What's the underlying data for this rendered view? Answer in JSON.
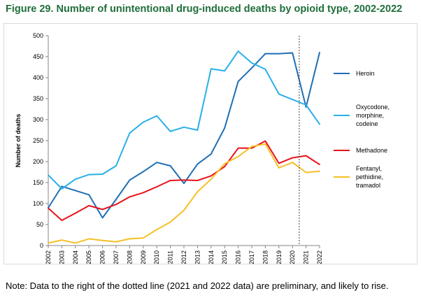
{
  "figure": {
    "title": "Figure 29. Number of unintentional drug-induced deaths by opioid type, 2002-2022",
    "note": "Note: Data to the right of the dotted line (2021 and 2022 data) are preliminary, and likely to rise."
  },
  "chart_data": {
    "type": "line",
    "title": "Figure 29. Number of unintentional drug-induced deaths by opioid type, 2002-2022",
    "xlabel": "",
    "ylabel": "Number of deaths",
    "x": [
      "2002",
      "2003",
      "2004",
      "2005",
      "2006",
      "2007",
      "2008",
      "2009",
      "2010",
      "2011",
      "2012",
      "2013",
      "2014",
      "2015",
      "2016",
      "2017",
      "2018",
      "2019",
      "2020",
      "2021",
      "2022"
    ],
    "ylim": [
      0,
      500
    ],
    "yticks": [
      0,
      50,
      100,
      150,
      200,
      250,
      300,
      350,
      400,
      450,
      500
    ],
    "grid": false,
    "legend_position": "right",
    "preliminary_marker_after": "2020",
    "series": [
      {
        "name": "Heroin",
        "legend_lines": [
          "Heroin"
        ],
        "color": "#1f6fb4",
        "values": [
          90,
          141,
          131,
          121,
          66,
          110,
          156,
          176,
          198,
          190,
          148,
          194,
          218,
          280,
          391,
          423,
          457,
          457,
          459,
          330,
          460
        ]
      },
      {
        "name": "Oxycodone, morphine, codeine",
        "legend_lines": [
          "Oxycodone,",
          "morphine,",
          "codeine"
        ],
        "color": "#29b0e8",
        "values": [
          168,
          135,
          158,
          169,
          170,
          190,
          268,
          294,
          309,
          272,
          282,
          275,
          421,
          416,
          463,
          435,
          420,
          361,
          348,
          335,
          289
        ]
      },
      {
        "name": "Methadone",
        "legend_lines": [
          "Methadone"
        ],
        "color": "#e8121b",
        "values": [
          89,
          60,
          77,
          95,
          86,
          98,
          116,
          126,
          140,
          155,
          156,
          155,
          166,
          188,
          232,
          232,
          249,
          196,
          209,
          214,
          193
        ]
      },
      {
        "name": "Fentanyl, pethidine, tramadol",
        "legend_lines": [
          "Fentanyl,",
          "pethidine,",
          "tramadol"
        ],
        "color": "#f6c026",
        "values": [
          6,
          13,
          6,
          16,
          12,
          9,
          16,
          18,
          38,
          56,
          84,
          128,
          158,
          195,
          212,
          236,
          242,
          185,
          198,
          174,
          177
        ]
      }
    ]
  }
}
